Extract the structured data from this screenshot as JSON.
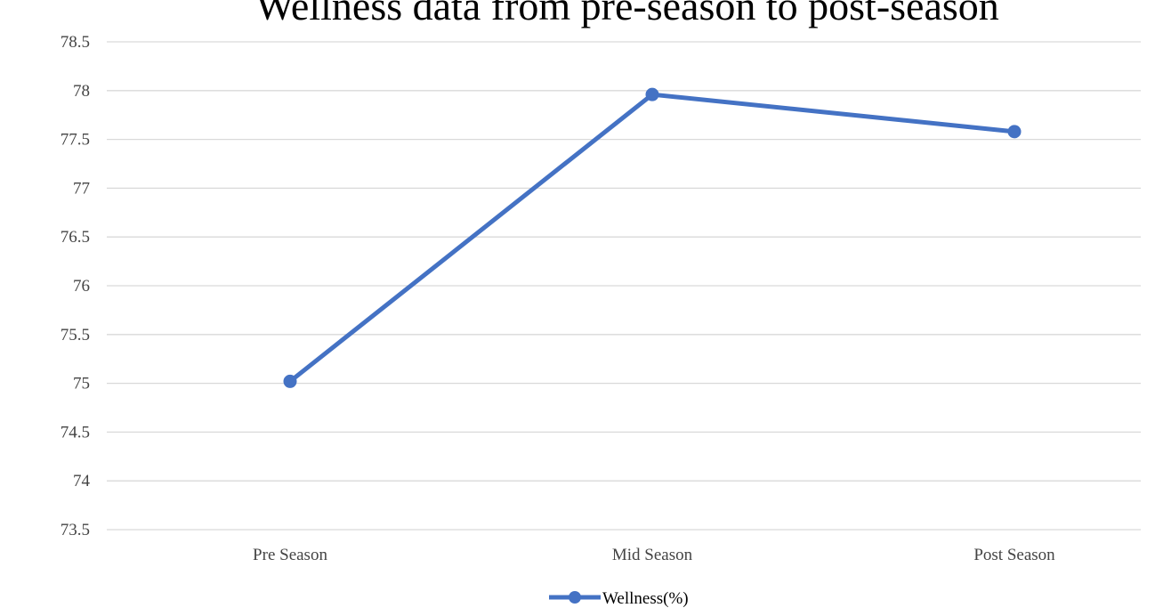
{
  "chart_data": {
    "type": "line",
    "title": "Wellness data from pre-season to post-season",
    "xlabel": "",
    "ylabel": "",
    "categories": [
      "Pre Season",
      "Mid Season",
      "Post Season"
    ],
    "series": [
      {
        "name": "Wellness(%)",
        "values": [
          75.02,
          77.96,
          77.58
        ],
        "color": "#4472C4",
        "marker": "circle"
      }
    ],
    "ylim": [
      73.5,
      78.5
    ],
    "ytick_step": 0.5,
    "ytick_labels": [
      "73.5",
      "74",
      "74.5",
      "75",
      "75.5",
      "76",
      "76.5",
      "77",
      "77.5",
      "78",
      "78.5"
    ],
    "grid": true,
    "grid_color": "#D9D9D9",
    "legend_position": "bottom"
  }
}
